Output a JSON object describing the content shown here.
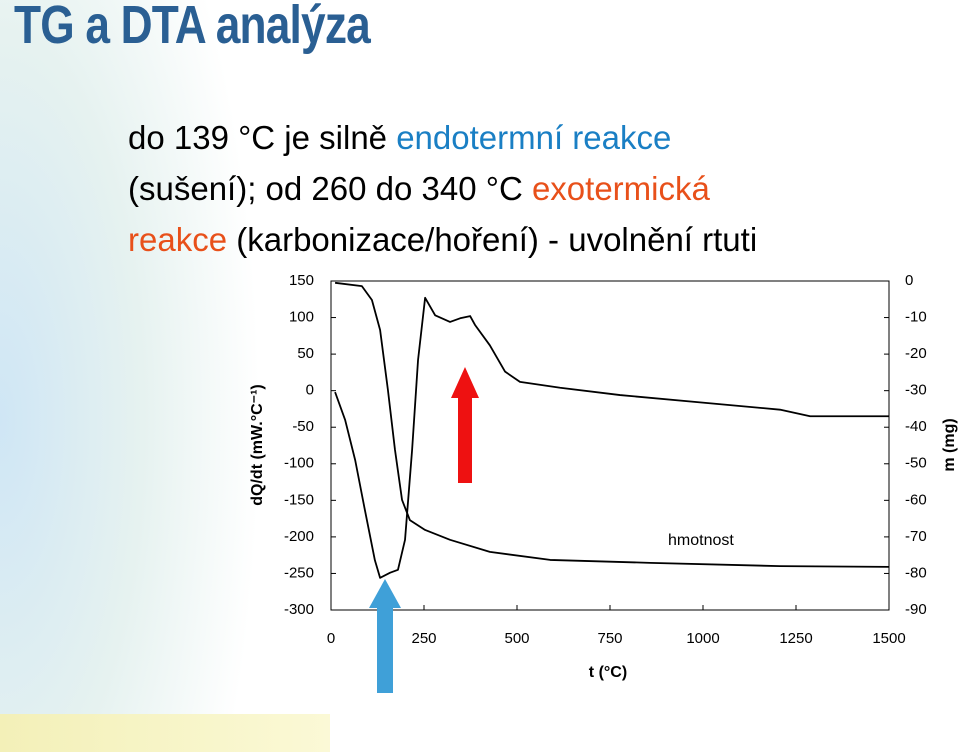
{
  "title": "TG a DTA analýza",
  "body": [
    [
      {
        "text": "do 139 °C je silně ",
        "color": "#000000"
      },
      {
        "text": "endotermní reakce",
        "color": "#1a7fc4"
      }
    ],
    [
      {
        "text": "(sušení); od 260 do 340 °C ",
        "color": "#000000"
      },
      {
        "text": "exotermická",
        "color": "#e8501a"
      }
    ],
    [
      {
        "text": "reakce",
        "color": "#e8501a"
      },
      {
        "text": " (karbonizace/hoření) - uvolnění rtuti",
        "color": "#000000"
      }
    ]
  ],
  "chart_data": {
    "type": "line",
    "x_label": "t (°C)",
    "y_label": "dQ/dt (mW.°C⁻¹)",
    "y2_label": "m (mg)",
    "annotation": "hmotnost",
    "xlim": [
      0,
      1500
    ],
    "xticks": [
      0,
      250,
      500,
      750,
      1000,
      1250,
      1500
    ],
    "ylim": [
      -300,
      150
    ],
    "yticks": [
      -300,
      -250,
      -200,
      -150,
      -100,
      -50,
      0,
      50,
      100,
      150
    ],
    "y2lim": [
      -90,
      0
    ],
    "y2ticks": [
      -90,
      -80,
      -70,
      -60,
      -50,
      -40,
      -30,
      -20,
      -10,
      0
    ],
    "grid": false,
    "series": [
      {
        "color": "#000000",
        "x": [
          11,
          38,
          65,
          91,
          118,
          132,
          159,
          180,
          199,
          218,
          234,
          253,
          280,
          320,
          347,
          374,
          387,
          427,
          468,
          508,
          616,
          777,
          992,
          1207,
          1288,
          1500
        ],
        "values": [
          -2,
          -40,
          -95,
          -163,
          -232,
          -256,
          -249,
          -245,
          -204,
          -81,
          42,
          127,
          103,
          94,
          99,
          102,
          90,
          62,
          26,
          12,
          4,
          -6,
          -16,
          -26,
          -35,
          -35
        ]
      },
      {
        "name": "hmotnost",
        "color": "#000000",
        "axis": "y2",
        "x": [
          11,
          83,
          110,
          132,
          153,
          172,
          191,
          212,
          253,
          320,
          427,
          589,
          858,
          1207,
          1500
        ],
        "values": [
          -0.5,
          -1.4,
          -5.2,
          -13.4,
          -29.8,
          -46.2,
          -59.9,
          -65.4,
          -68.1,
          -70.8,
          -74.1,
          -76.3,
          -77.1,
          -78,
          -78.2
        ]
      }
    ]
  }
}
